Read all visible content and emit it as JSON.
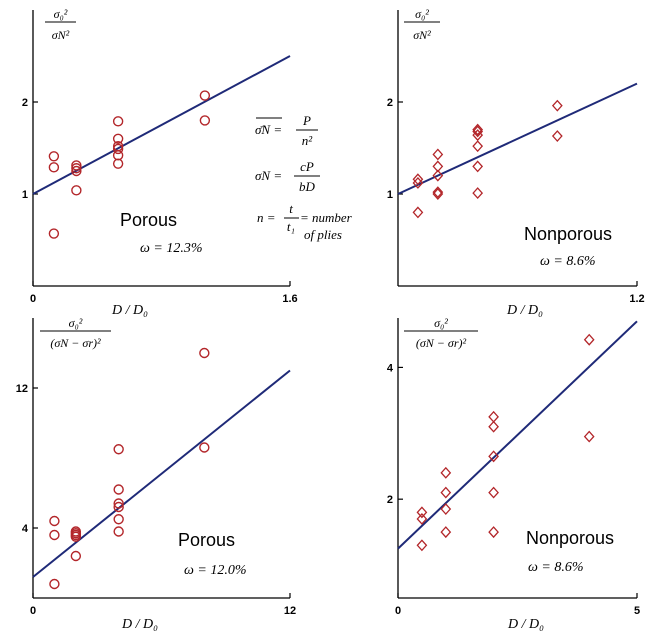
{
  "colors": {
    "fit_line": "#1f2a78",
    "points": "#b3262a",
    "axis": "#000000"
  },
  "equations": {
    "line1_lhs": "σ̄N =",
    "line1_num": "P",
    "line1_den": "n²",
    "line2_lhs": "σN =",
    "line2_num": "cP",
    "line2_den": "bD",
    "line3_lhs": "n =",
    "line3_num": "t",
    "line3_den": "t₁",
    "line3_rhs": "= number",
    "line3_rhs2": "of plies"
  },
  "chart_data": [
    {
      "type": "scatter",
      "label": "Porous",
      "omega": "ω = 12.3%",
      "xlabel": "D / D₀",
      "ylabel_num": "σ₀²",
      "ylabel_den": "σN²",
      "marker": "circle",
      "xlim": [
        0,
        1.6
      ],
      "ylim": [
        0,
        3.0
      ],
      "xticks": [
        {
          "v": 0,
          "t": "0"
        },
        {
          "v": 1.6,
          "t": "1.6"
        }
      ],
      "yticks": [
        {
          "v": 1,
          "t": "1"
        },
        {
          "v": 2,
          "t": "2"
        }
      ],
      "fit": {
        "x": [
          0,
          1.6
        ],
        "y": [
          1.0,
          2.5
        ]
      },
      "points": [
        {
          "x": 0.13,
          "y": 0.57
        },
        {
          "x": 0.13,
          "y": 1.29
        },
        {
          "x": 0.13,
          "y": 1.41
        },
        {
          "x": 0.27,
          "y": 1.04
        },
        {
          "x": 0.27,
          "y": 1.25
        },
        {
          "x": 0.27,
          "y": 1.28
        },
        {
          "x": 0.27,
          "y": 1.31
        },
        {
          "x": 0.53,
          "y": 1.33
        },
        {
          "x": 0.53,
          "y": 1.42
        },
        {
          "x": 0.53,
          "y": 1.49
        },
        {
          "x": 0.53,
          "y": 1.52
        },
        {
          "x": 0.53,
          "y": 1.6
        },
        {
          "x": 0.53,
          "y": 1.79
        },
        {
          "x": 1.07,
          "y": 1.8
        },
        {
          "x": 1.07,
          "y": 2.07
        }
      ]
    },
    {
      "type": "scatter",
      "label": "Nonporous",
      "omega": "ω = 8.6%",
      "xlabel": "D / D₀",
      "ylabel_num": "σ₀²",
      "ylabel_den": "σN²",
      "marker": "diamond",
      "xlim": [
        0,
        1.2
      ],
      "ylim": [
        0,
        3.0
      ],
      "xticks": [
        {
          "v": 1.2,
          "t": "1.2"
        }
      ],
      "yticks": [
        {
          "v": 1,
          "t": "1"
        },
        {
          "v": 2,
          "t": "2"
        }
      ],
      "fit": {
        "x": [
          0,
          1.2
        ],
        "y": [
          1.0,
          2.2
        ]
      },
      "points": [
        {
          "x": 0.1,
          "y": 0.8
        },
        {
          "x": 0.1,
          "y": 1.12
        },
        {
          "x": 0.1,
          "y": 1.16
        },
        {
          "x": 0.2,
          "y": 1.0
        },
        {
          "x": 0.2,
          "y": 1.02
        },
        {
          "x": 0.2,
          "y": 1.2
        },
        {
          "x": 0.2,
          "y": 1.3
        },
        {
          "x": 0.2,
          "y": 1.43
        },
        {
          "x": 0.4,
          "y": 1.01
        },
        {
          "x": 0.4,
          "y": 1.3
        },
        {
          "x": 0.4,
          "y": 1.52
        },
        {
          "x": 0.4,
          "y": 1.64
        },
        {
          "x": 0.4,
          "y": 1.68
        },
        {
          "x": 0.4,
          "y": 1.7
        },
        {
          "x": 0.8,
          "y": 1.63
        },
        {
          "x": 0.8,
          "y": 1.96
        }
      ]
    },
    {
      "type": "scatter",
      "label": "Porous",
      "omega": "ω = 12.0%",
      "xlabel": "D / D₀",
      "ylabel_num": "σ₀²",
      "ylabel_den": "(σN − σr)²",
      "marker": "circle",
      "xlim": [
        0,
        12
      ],
      "ylim": [
        0,
        16
      ],
      "xticks": [
        {
          "v": 0,
          "t": "0"
        },
        {
          "v": 12,
          "t": "12"
        }
      ],
      "yticks": [
        {
          "v": 4,
          "t": "4"
        },
        {
          "v": 12,
          "t": "12"
        }
      ],
      "fit": {
        "x": [
          0,
          12
        ],
        "y": [
          1.2,
          13.0
        ]
      },
      "points": [
        {
          "x": 1.0,
          "y": 0.8
        },
        {
          "x": 1.0,
          "y": 3.6
        },
        {
          "x": 1.0,
          "y": 4.4
        },
        {
          "x": 2.0,
          "y": 2.4
        },
        {
          "x": 2.0,
          "y": 3.5
        },
        {
          "x": 2.0,
          "y": 3.6
        },
        {
          "x": 2.0,
          "y": 3.7
        },
        {
          "x": 2.0,
          "y": 3.8
        },
        {
          "x": 4.0,
          "y": 3.8
        },
        {
          "x": 4.0,
          "y": 4.5
        },
        {
          "x": 4.0,
          "y": 5.2
        },
        {
          "x": 4.0,
          "y": 5.4
        },
        {
          "x": 4.0,
          "y": 6.2
        },
        {
          "x": 4.0,
          "y": 8.5
        },
        {
          "x": 8.0,
          "y": 8.6
        },
        {
          "x": 8.0,
          "y": 14.0
        }
      ]
    },
    {
      "type": "scatter",
      "label": "Nonporous",
      "omega": "ω = 8.6%",
      "xlabel": "D / D₀",
      "ylabel_num": "σ₀²",
      "ylabel_den": "(σN − σr)²",
      "marker": "diamond",
      "xlim": [
        0,
        5
      ],
      "ylim": [
        0.5,
        4.75
      ],
      "xticks": [
        {
          "v": 0,
          "t": "0"
        },
        {
          "v": 5,
          "t": "5"
        }
      ],
      "yticks": [
        {
          "v": 2,
          "t": "2"
        },
        {
          "v": 4,
          "t": "4"
        }
      ],
      "fit": {
        "x": [
          0,
          5
        ],
        "y": [
          1.25,
          4.7
        ]
      },
      "points": [
        {
          "x": 0.5,
          "y": 1.3
        },
        {
          "x": 0.5,
          "y": 1.7
        },
        {
          "x": 0.5,
          "y": 1.8
        },
        {
          "x": 1.0,
          "y": 1.5
        },
        {
          "x": 1.0,
          "y": 1.85
        },
        {
          "x": 1.0,
          "y": 2.1
        },
        {
          "x": 1.0,
          "y": 2.4
        },
        {
          "x": 2.0,
          "y": 1.5
        },
        {
          "x": 2.0,
          "y": 2.1
        },
        {
          "x": 2.0,
          "y": 2.65
        },
        {
          "x": 2.0,
          "y": 3.1
        },
        {
          "x": 2.0,
          "y": 3.25
        },
        {
          "x": 4.0,
          "y": 2.95
        },
        {
          "x": 4.0,
          "y": 4.42
        }
      ]
    }
  ]
}
